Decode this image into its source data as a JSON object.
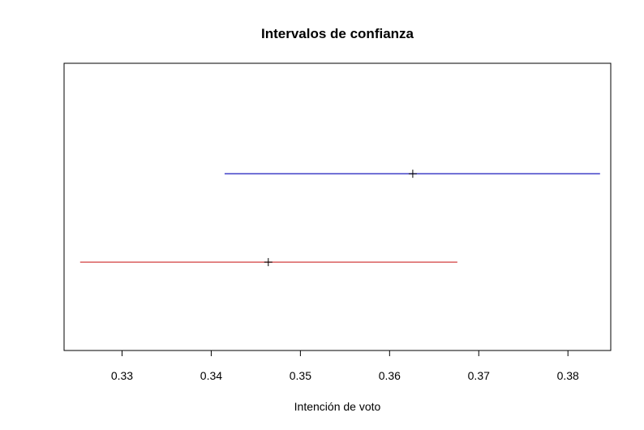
{
  "chart_data": {
    "type": "errorbar",
    "orientation": "horizontal",
    "title": "Intervalos de confianza",
    "xlabel": "Intención de voto",
    "ylabel": "",
    "xlim": [
      0.3235,
      0.3848
    ],
    "xticks": [
      0.33,
      0.34,
      0.35,
      0.36,
      0.37,
      0.38
    ],
    "xtick_labels": [
      "0.33",
      "0.34",
      "0.35",
      "0.36",
      "0.37",
      "0.38"
    ],
    "grid": false,
    "legend": "none",
    "intervals": [
      {
        "lower": 0.3415,
        "estimate": 0.3626,
        "upper": 0.3836,
        "color": "#4040c8",
        "y": 2
      },
      {
        "lower": 0.3253,
        "estimate": 0.3464,
        "upper": 0.3676,
        "color": "#d95f5f",
        "y": 1
      }
    ],
    "ylim": [
      0,
      3.25
    ],
    "marker_color": "#000000"
  }
}
